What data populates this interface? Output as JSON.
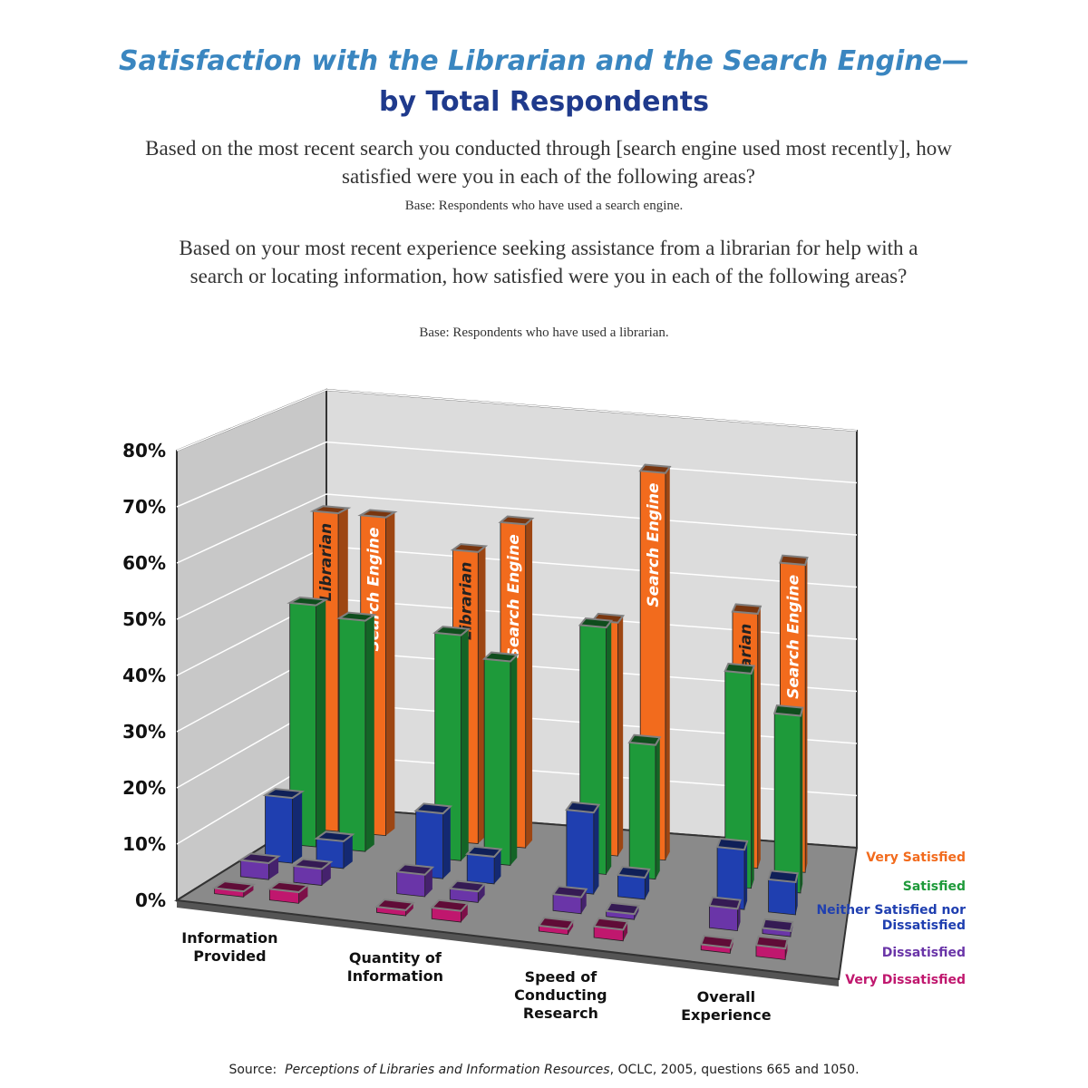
{
  "chart_data": {
    "type": "bar3d",
    "title": "Satisfaction with the Librarian and the Search Engine—",
    "subtitle": "by Total Respondents",
    "question_search_engine": "Based on the most recent search you conducted through [search engine used most recently], how satisfied were you in each of the following areas?",
    "base_search_engine": "Base:  Respondents who have used a search engine.",
    "question_librarian": "Based on your most recent experience seeking assistance from a librarian for help with a search or locating information, how satisfied were you in each of the following areas?",
    "base_librarian": "Base:  Respondents who have used a librarian.",
    "categories": [
      "Information Provided",
      "Quantity of Information",
      "Speed of Conducting Research",
      "Overall Experience"
    ],
    "groups": [
      "Librarian",
      "Search Engine"
    ],
    "series": [
      {
        "name": "Very Satisfied",
        "color": "#f26b1d",
        "librarian": [
          60,
          55,
          44,
          48
        ],
        "search_engine": [
          60,
          61,
          73,
          58
        ]
      },
      {
        "name": "Satisfied",
        "color": "#1e9a3a",
        "librarian": [
          45,
          42,
          46,
          40
        ],
        "search_engine": [
          43,
          38,
          25,
          33
        ]
      },
      {
        "name": "Neither Satisfied nor Dissatisfied",
        "color": "#1f3fb0",
        "librarian": [
          12,
          12,
          15,
          11
        ],
        "search_engine": [
          5,
          5,
          4,
          6
        ]
      },
      {
        "name": "Dissatisfied",
        "color": "#6a35a8",
        "librarian": [
          3,
          4,
          3,
          4
        ],
        "search_engine": [
          3,
          2,
          1,
          1
        ]
      },
      {
        "name": "Very Dissatisfied",
        "color": "#c0176e",
        "librarian": [
          1,
          1,
          1,
          1
        ],
        "search_engine": [
          2,
          2,
          2,
          2
        ]
      }
    ],
    "ylim": [
      0,
      80
    ],
    "yticks": [
      {
        "value": 0,
        "label": "0%"
      },
      {
        "value": 10,
        "label": "10%"
      },
      {
        "value": 20,
        "label": "20%"
      },
      {
        "value": 30,
        "label": "30%"
      },
      {
        "value": 40,
        "label": "40%"
      },
      {
        "value": 50,
        "label": "50%"
      },
      {
        "value": 60,
        "label": "60%"
      },
      {
        "value": 70,
        "label": "70%"
      },
      {
        "value": 80,
        "label": "80%"
      }
    ],
    "grid": true,
    "source": {
      "prefix": "Source:",
      "title": "Perceptions of Libraries and Information Resources",
      "rest": ", OCLC, 2005, questions 665 and 1050."
    }
  }
}
